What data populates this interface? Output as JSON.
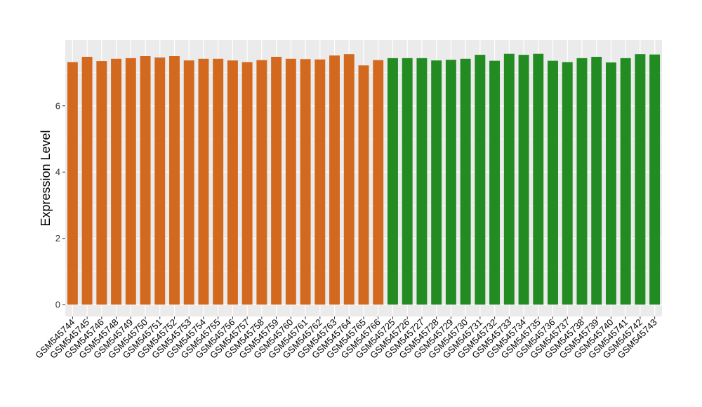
{
  "chart_data": {
    "type": "bar",
    "title": "",
    "xlabel": "",
    "ylabel": "Expression Level",
    "ylim": [
      0,
      7.85
    ],
    "yticks": [
      0,
      2,
      4,
      6
    ],
    "grid": true,
    "background_color": "#ebebeb",
    "gridline_color": "#ffffff",
    "categories": [
      "GSM545744",
      "GSM545745",
      "GSM545746",
      "GSM545748",
      "GSM545749",
      "GSM545750",
      "GSM545751",
      "GSM545752",
      "GSM545753",
      "GSM545754",
      "GSM545755",
      "GSM545756",
      "GSM545757",
      "GSM545758",
      "GSM545759",
      "GSM545760",
      "GSM545761",
      "GSM545762",
      "GSM545763",
      "GSM545764",
      "GSM545765",
      "GSM545766",
      "GSM545725",
      "GSM545726",
      "GSM545727",
      "GSM545728",
      "GSM545729",
      "GSM545730",
      "GSM545731",
      "GSM545732",
      "GSM545733",
      "GSM545734",
      "GSM545735",
      "GSM545736",
      "GSM545737",
      "GSM545738",
      "GSM545739",
      "GSM545740",
      "GSM545741",
      "GSM545742",
      "GSM545743"
    ],
    "values": [
      7.32,
      7.48,
      7.35,
      7.42,
      7.44,
      7.5,
      7.46,
      7.5,
      7.37,
      7.42,
      7.42,
      7.37,
      7.32,
      7.38,
      7.48,
      7.42,
      7.41,
      7.4,
      7.52,
      7.56,
      7.22,
      7.38,
      7.44,
      7.44,
      7.44,
      7.37,
      7.39,
      7.42,
      7.54,
      7.36,
      7.57,
      7.54,
      7.57,
      7.36,
      7.32,
      7.44,
      7.48,
      7.31,
      7.44,
      7.56,
      7.55
    ],
    "bar_colors": [
      "#d2691e",
      "#d2691e",
      "#d2691e",
      "#d2691e",
      "#d2691e",
      "#d2691e",
      "#d2691e",
      "#d2691e",
      "#d2691e",
      "#d2691e",
      "#d2691e",
      "#d2691e",
      "#d2691e",
      "#d2691e",
      "#d2691e",
      "#d2691e",
      "#d2691e",
      "#d2691e",
      "#d2691e",
      "#d2691e",
      "#d2691e",
      "#d2691e",
      "#228b22",
      "#228b22",
      "#228b22",
      "#228b22",
      "#228b22",
      "#228b22",
      "#228b22",
      "#228b22",
      "#228b22",
      "#228b22",
      "#228b22",
      "#228b22",
      "#228b22",
      "#228b22",
      "#228b22",
      "#228b22",
      "#228b22",
      "#228b22",
      "#228b22"
    ]
  }
}
